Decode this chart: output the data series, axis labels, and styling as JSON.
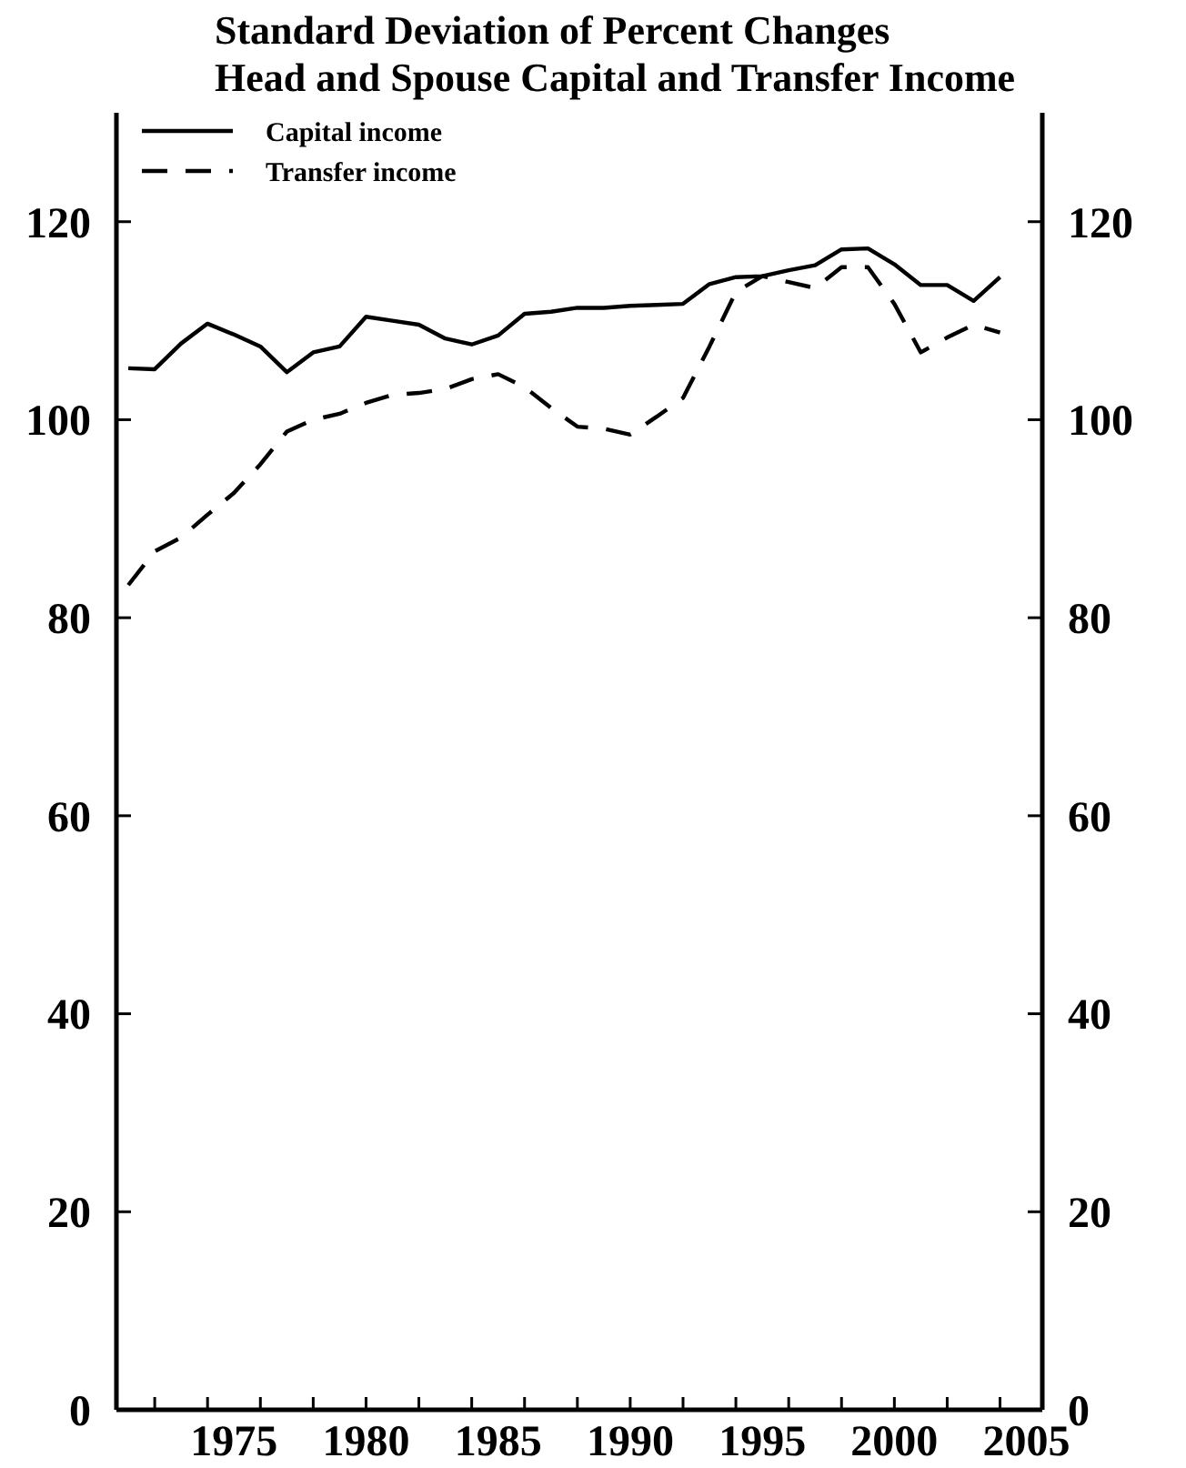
{
  "chart_data": {
    "type": "line",
    "title": "Standard Deviation of Percent Changes",
    "subtitle": "Head and Spouse Capital and Transfer Income",
    "x": [
      1971,
      1972,
      1973,
      1974,
      1975,
      1976,
      1977,
      1978,
      1979,
      1980,
      1981,
      1982,
      1983,
      1984,
      1985,
      1986,
      1987,
      1988,
      1989,
      1990,
      1991,
      1992,
      1993,
      1994,
      1995,
      1996,
      1997,
      1998,
      1999,
      2000,
      2001,
      2002,
      2003,
      2004
    ],
    "series": [
      {
        "name": "Capital income",
        "color": "#000000",
        "line_style": "solid",
        "values": [
          105.2,
          105.1,
          107.7,
          109.7,
          108.6,
          107.4,
          104.8,
          106.8,
          107.4,
          110.4,
          110,
          109.6,
          108.2,
          107.6,
          108.5,
          110.7,
          110.9,
          111.3,
          111.3,
          111.5,
          111.6,
          111.7,
          113.7,
          114.4,
          114.5,
          115.1,
          115.6,
          117.2,
          117.3,
          115.7,
          113.6,
          113.6,
          112,
          114.4
        ]
      },
      {
        "name": "Transfer income",
        "color": "#000000",
        "line_style": "dashed",
        "values": [
          83.3,
          86.7,
          88.1,
          90.4,
          92.6,
          95.5,
          98.8,
          100,
          100.6,
          101.7,
          102.5,
          102.7,
          103.1,
          104.1,
          104.6,
          103.3,
          101.2,
          99.3,
          99.1,
          98.5,
          100.3,
          102.2,
          107.4,
          112.9,
          114.5,
          113.9,
          113.3,
          115.4,
          115.4,
          111.7,
          106.8,
          108.3,
          109.6,
          108.8
        ]
      }
    ],
    "xlim": [
      1970.55,
      2005.6
    ],
    "xticks": [
      {
        "value": 1972,
        "label": null
      },
      {
        "value": 1974,
        "label": null
      },
      {
        "value": 1975,
        "label": "1975"
      },
      {
        "value": 1976,
        "label": null
      },
      {
        "value": 1978,
        "label": null
      },
      {
        "value": 1980,
        "label": "1980"
      },
      {
        "value": 1980,
        "label": null
      },
      {
        "value": 1982,
        "label": null
      },
      {
        "value": 1984,
        "label": null
      },
      {
        "value": 1985,
        "label": "1985"
      },
      {
        "value": 1986,
        "label": null
      },
      {
        "value": 1988,
        "label": null
      },
      {
        "value": 1990,
        "label": "1990"
      },
      {
        "value": 1990,
        "label": null
      },
      {
        "value": 1992,
        "label": null
      },
      {
        "value": 1994,
        "label": null
      },
      {
        "value": 1995,
        "label": "1995"
      },
      {
        "value": 1996,
        "label": null
      },
      {
        "value": 1998,
        "label": null
      },
      {
        "value": 2000,
        "label": "2000"
      },
      {
        "value": 2000,
        "label": null
      },
      {
        "value": 2002,
        "label": null
      },
      {
        "value": 2004,
        "label": null
      },
      {
        "value": 2005,
        "label": "2005"
      }
    ],
    "ylim": [
      0,
      131
    ],
    "yticks": [
      0,
      20,
      40,
      60,
      80,
      100,
      120
    ],
    "y2lim": [
      0,
      131
    ],
    "y2ticks": [
      0,
      20,
      40,
      60,
      80,
      100,
      120
    ],
    "grid": false,
    "legend": "top left"
  }
}
